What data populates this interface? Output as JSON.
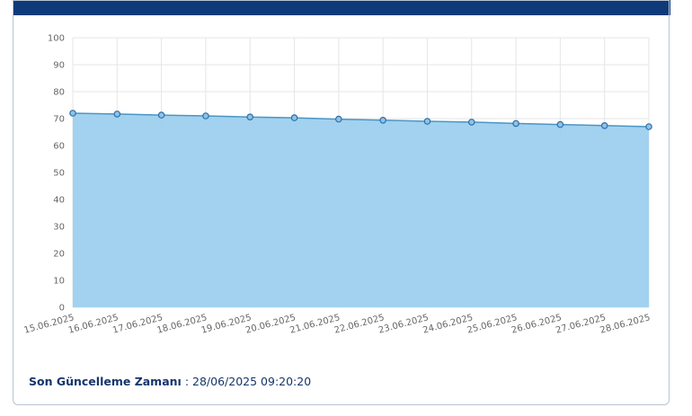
{
  "chart_data": {
    "type": "area",
    "categories": [
      "15.06.2025",
      "16.06.2025",
      "17.06.2025",
      "18.06.2025",
      "19.06.2025",
      "20.06.2025",
      "21.06.2025",
      "22.06.2025",
      "23.06.2025",
      "24.06.2025",
      "25.06.2025",
      "26.06.2025",
      "27.06.2025",
      "28.06.2025"
    ],
    "values": [
      72,
      71.7,
      71.3,
      71,
      70.6,
      70.3,
      69.8,
      69.4,
      69,
      68.7,
      68.2,
      67.8,
      67.4,
      67
    ],
    "color": "#4b95c6",
    "fill": "#9dd0ee",
    "ylim": [
      0,
      100
    ],
    "yticks": [
      0,
      10,
      20,
      30,
      40,
      50,
      60,
      70,
      80,
      90,
      100
    ],
    "grid": true
  },
  "footer": {
    "label": "Son Güncelleme Zamanı",
    "value": ": 28/06/2025 09:20:20"
  }
}
